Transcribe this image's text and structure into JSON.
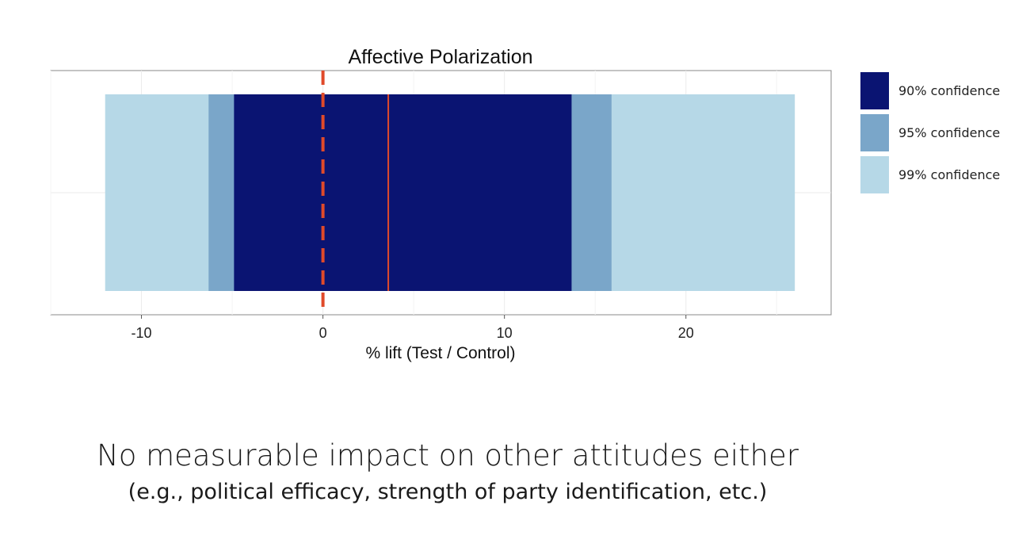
{
  "chart_data": {
    "type": "bar",
    "title": "Affective Polarization",
    "xlabel": "% lift (Test / Control)",
    "ylabel": "",
    "xlim": [
      -15,
      28
    ],
    "xticks": [
      -10,
      0,
      10,
      20
    ],
    "xtick_labels": [
      "-10",
      "0",
      "10",
      "20"
    ],
    "grid": true,
    "legend_position": "right",
    "series": [
      {
        "name": "99% confidence",
        "low": -12.0,
        "high": 26.0,
        "color": "#b6d8e7"
      },
      {
        "name": "95% confidence",
        "low": -6.3,
        "high": 15.9,
        "color": "#7aa6c9"
      },
      {
        "name": "90% confidence",
        "low": -4.9,
        "high": 13.7,
        "color": "#0a1472"
      }
    ],
    "point_estimate": 3.6,
    "reference_line": 0,
    "reference_line_style": "dashed",
    "line_color": "#e04a2a"
  },
  "caption": {
    "line1": "No measurable impact on other attitudes either",
    "line2": "(e.g., political efficacy, strength of party identification, etc.)"
  }
}
